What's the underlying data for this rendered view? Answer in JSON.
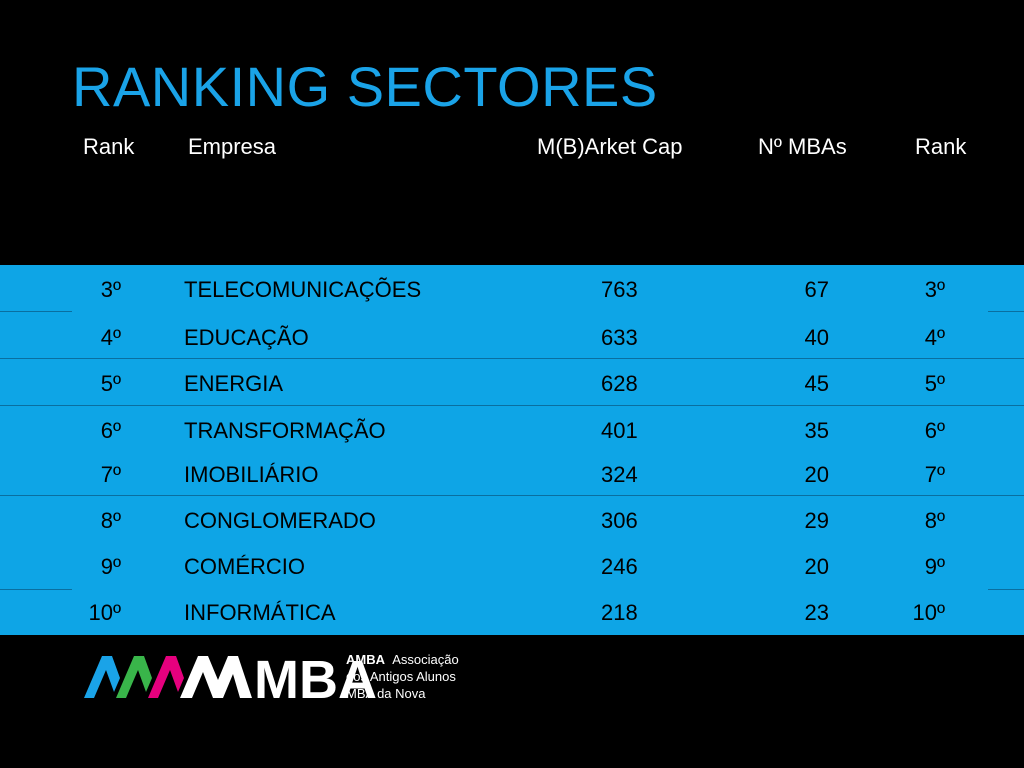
{
  "slide": {
    "title": "RANKING SECTORES"
  },
  "table": {
    "headers": {
      "rank": "Rank",
      "empresa": "Empresa",
      "market_cap": "M(B)Arket Cap",
      "n_mbas": "Nº MBAs",
      "rank2": "Rank"
    },
    "rows": [
      {
        "rank": "3º",
        "name": "TELECOMUNICAÇÕES",
        "market_cap": "763",
        "n_mbas": "67",
        "rank2": "3º"
      },
      {
        "rank": "4º",
        "name": "EDUCAÇÃO",
        "market_cap": "633",
        "n_mbas": "40",
        "rank2": "4º"
      },
      {
        "rank": "5º",
        "name": "ENERGIA",
        "market_cap": "628",
        "n_mbas": "45",
        "rank2": "5º"
      },
      {
        "rank": "6º",
        "name": "TRANSFORMAÇÃO",
        "market_cap": "401",
        "n_mbas": "35",
        "rank2": "6º"
      },
      {
        "rank": "7º",
        "name": "IMOBILIÁRIO",
        "market_cap": "324",
        "n_mbas": "20",
        "rank2": "7º"
      },
      {
        "rank": "8º",
        "name": "CONGLOMERADO",
        "market_cap": "306",
        "n_mbas": "29",
        "rank2": "8º"
      },
      {
        "rank": "9º",
        "name": "COMÉRCIO",
        "market_cap": "246",
        "n_mbas": "20",
        "rank2": "9º"
      },
      {
        "rank": "10º",
        "name": "INFORMÁTICA",
        "market_cap": "218",
        "n_mbas": "23",
        "rank2": "10º"
      }
    ]
  },
  "footer": {
    "logo_mark": "MBA",
    "org_short": "AMBA",
    "org_line1": "Associação",
    "org_line2": "dos Antigos Alunos",
    "org_line3": "MBA da Nova"
  },
  "colors": {
    "background": "#000000",
    "title": "#1aa3e8",
    "band": "#0ea5e6",
    "logo_blue": "#1aa3e8",
    "logo_green": "#39b54a",
    "logo_magenta": "#e6007e"
  }
}
